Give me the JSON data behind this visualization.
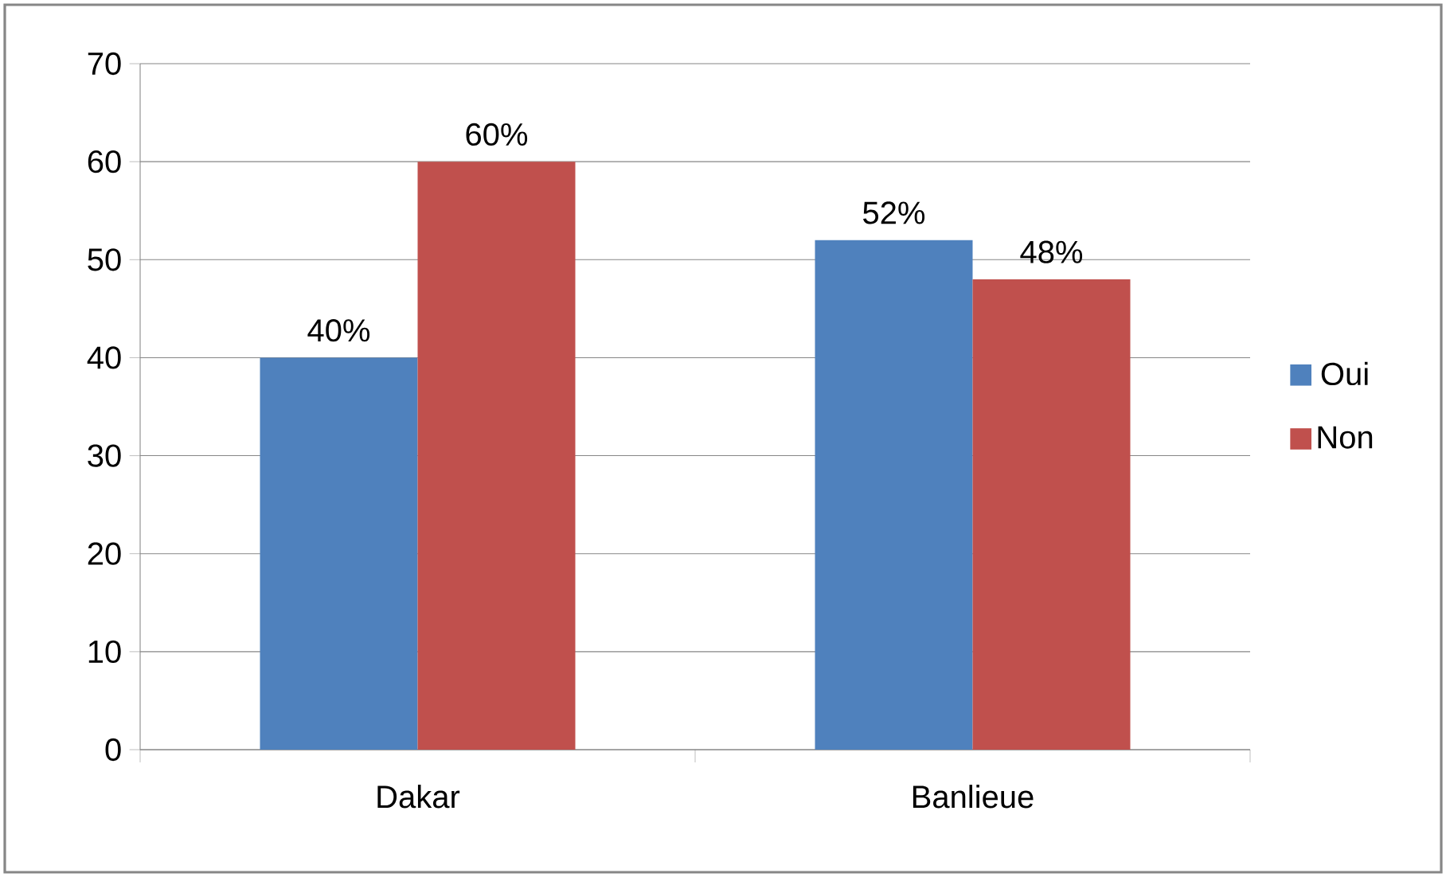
{
  "chart_data": {
    "type": "bar",
    "categories": [
      "Dakar",
      "Banlieue"
    ],
    "series": [
      {
        "name": "Oui",
        "color": "#4f81bd",
        "values": [
          40,
          52
        ],
        "value_labels": [
          "40%",
          "52%"
        ]
      },
      {
        "name": "Non",
        "color": "#c0504d",
        "values": [
          60,
          48
        ],
        "value_labels": [
          "60%",
          "48%"
        ]
      }
    ],
    "ylim": [
      0,
      70
    ],
    "yticks": [
      0,
      10,
      20,
      30,
      40,
      50,
      60,
      70
    ],
    "grid": "y",
    "legend": "right"
  }
}
